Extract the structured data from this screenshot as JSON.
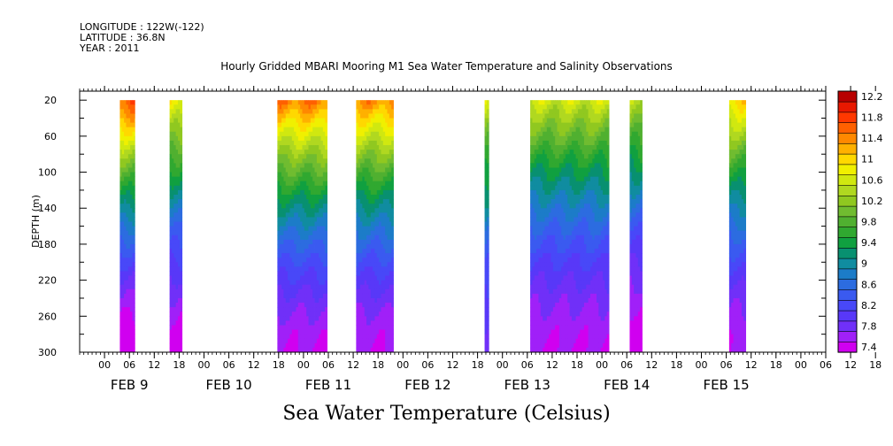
{
  "header": {
    "longitude": "LONGITUDE : 122W(-122)",
    "latitude": "LATITUDE : 36.8N",
    "year": "YEAR : 2011"
  },
  "chart_data": {
    "type": "heatmap",
    "title": "Hourly Gridded MBARI Mooring M1 Sea Water Temperature and Salinity Observations",
    "xlabel": "",
    "ylabel": "DEPTH (m)",
    "footer": "Sea Water Temperature (Celsius)",
    "x_range_hours": [
      -6,
      174
    ],
    "x_origin_date": "FEB 9 00:00",
    "x_tick_labels": [
      "00",
      "06",
      "12",
      "18",
      "00",
      "06",
      "12",
      "18",
      "00",
      "06",
      "12",
      "18",
      "00",
      "06",
      "12",
      "18",
      "00",
      "06",
      "12",
      "18",
      "00",
      "06",
      "12",
      "18",
      "00",
      "06",
      "12",
      "18",
      "00",
      "06",
      "12",
      "18"
    ],
    "x_day_labels": [
      "FEB 9",
      "FEB 10",
      "FEB 11",
      "FEB 12",
      "FEB 13",
      "FEB 14",
      "FEB 15"
    ],
    "y_ticks": [
      20,
      60,
      100,
      140,
      180,
      220,
      260,
      300
    ],
    "ylim": [
      10,
      300
    ],
    "y_inverted": true,
    "colorbar": {
      "levels": [
        7.4,
        7.6,
        7.8,
        8.0,
        8.2,
        8.4,
        8.6,
        8.8,
        9.0,
        9.2,
        9.4,
        9.6,
        9.8,
        10.0,
        10.2,
        10.4,
        10.6,
        10.8,
        11.0,
        11.2,
        11.4,
        11.6,
        11.8,
        12.0,
        12.2,
        12.4
      ],
      "labels": [
        "7.4",
        "7.8",
        "8.2",
        "8.6",
        "9",
        "9.4",
        "9.8",
        "10.2",
        "10.6",
        "11",
        "11.4",
        "11.8",
        "12.2"
      ],
      "colors": [
        "#d000f0",
        "#a020f8",
        "#7030f8",
        "#5838f8",
        "#4848f8",
        "#3a5af0",
        "#2c6ce0",
        "#1c7cc8",
        "#108ca0",
        "#089070",
        "#10a040",
        "#30a830",
        "#50b030",
        "#70bc30",
        "#90c820",
        "#b0d820",
        "#d0e810",
        "#f0f000",
        "#ffd800",
        "#ffb000",
        "#ff8800",
        "#ff6000",
        "#ff3800",
        "#e81800",
        "#b80000"
      ]
    },
    "segments": [
      {
        "start": 3.7,
        "end": 7.3,
        "surface": 11.8,
        "bottom": 7.4
      },
      {
        "start": 15.7,
        "end": 18.7,
        "surface": 11.0,
        "bottom": 7.5
      },
      {
        "start": 41.7,
        "end": 53.7,
        "surface": 11.6,
        "bottom": 7.6
      },
      {
        "start": 60.7,
        "end": 69.7,
        "surface": 11.5,
        "bottom": 7.6
      },
      {
        "start": 91.7,
        "end": 92.7,
        "surface": 10.7,
        "bottom": 7.9
      },
      {
        "start": 102.7,
        "end": 121.7,
        "surface": 10.7,
        "bottom": 7.6
      },
      {
        "start": 126.7,
        "end": 129.7,
        "surface": 10.6,
        "bottom": 7.4
      },
      {
        "start": 150.7,
        "end": 154.7,
        "surface": 11.1,
        "bottom": 7.6
      }
    ]
  }
}
